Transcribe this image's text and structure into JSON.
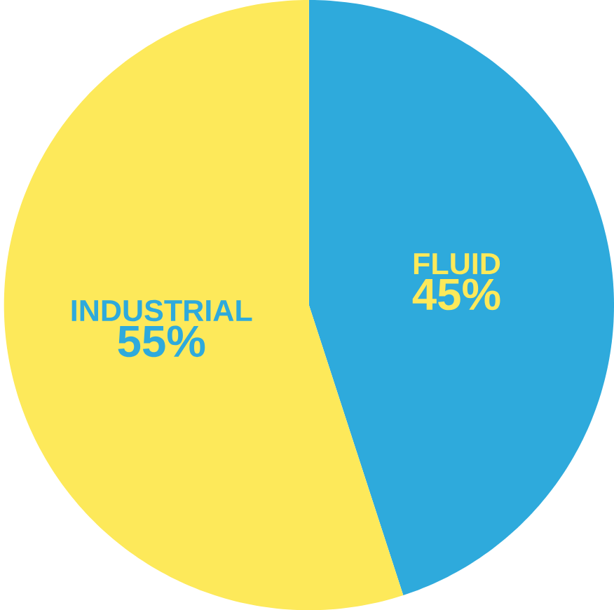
{
  "chart_data": {
    "type": "pie",
    "categories": [
      "FLUID",
      "INDUSTRIAL"
    ],
    "values": [
      45,
      55
    ],
    "colors": [
      "#2eaadc",
      "#fde95a"
    ],
    "value_labels": [
      "45%",
      "55%"
    ]
  }
}
